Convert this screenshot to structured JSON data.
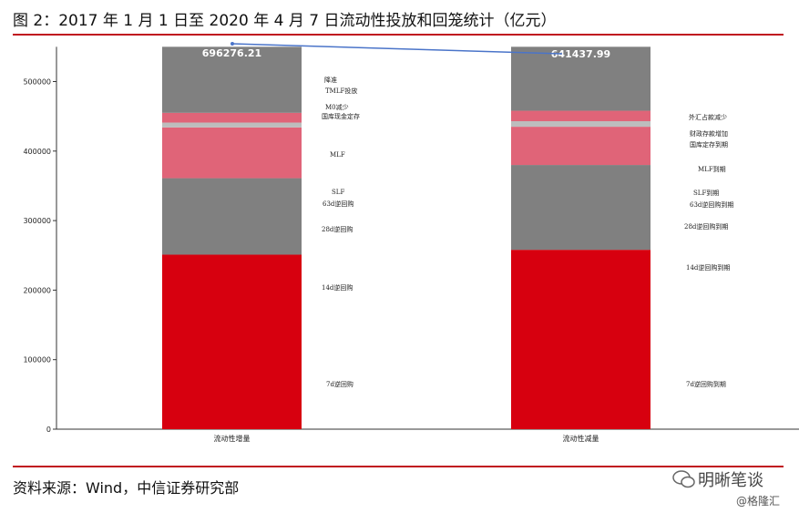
{
  "header": {
    "title": "图 2：2017 年 1 月 1 日至 2020 年 4 月 7 日流动性投放和回笼统计（亿元）"
  },
  "footer": {
    "source": "资料来源：Wind，中信证券研究部",
    "watermark_brand": "明晰笔谈",
    "watermark_sub": "@格隆汇"
  },
  "colors": {
    "accent_rule": "#c0141f",
    "red": "#d7000f",
    "pink": "#e06478",
    "gray": "#808080",
    "light_gray": "#bdbdbd",
    "link_line": "#4a74c9"
  },
  "chart_data": {
    "type": "bar",
    "stacked": true,
    "ylim": [
      0,
      550000
    ],
    "yticks": [
      0,
      100000,
      200000,
      300000,
      400000,
      500000
    ],
    "categories": [
      "流动性增量",
      "流动性减量"
    ],
    "totals": [
      "696276.21",
      "641437.99"
    ],
    "stacks": [
      {
        "category": "流动性增量",
        "segments": [
          {
            "label": "7d逆回购",
            "value": 251000,
            "color": "red"
          },
          {
            "label": "28d逆回购",
            "value": 110000,
            "color": "gray"
          },
          {
            "label": "MLF",
            "value": 73000,
            "color": "pink"
          },
          {
            "label": "国库现金定存",
            "value": 7000,
            "color": "light_gray"
          },
          {
            "label": "M0减少",
            "value": 14000,
            "color": "pink"
          },
          {
            "label": "降准",
            "value": 95000,
            "color": "gray"
          }
        ],
        "annotations": [
          "降准",
          "TMLF投放",
          "M0减少",
          "国库现金定存",
          "MLF",
          "SLF",
          "63d逆回购",
          "28d逆回购",
          "14d逆回购",
          "7d逆回购"
        ]
      },
      {
        "category": "流动性减量",
        "segments": [
          {
            "label": "7d逆回购到期",
            "value": 258000,
            "color": "red"
          },
          {
            "label": "28d逆回购到期",
            "value": 122000,
            "color": "gray"
          },
          {
            "label": "MLF到期",
            "value": 55000,
            "color": "pink"
          },
          {
            "label": "国库定存到期",
            "value": 8000,
            "color": "light_gray"
          },
          {
            "label": "财政存款增加",
            "value": 15000,
            "color": "pink"
          },
          {
            "label": "外汇占款减少",
            "value": 92000,
            "color": "gray"
          }
        ],
        "annotations": [
          "外汇占款减少",
          "财政存款增加",
          "国库定存到期",
          "MLF到期",
          "SLF到期",
          "63d逆回购到期",
          "28d逆回购到期",
          "14d逆回购到期",
          "7d逆回购到期"
        ]
      }
    ]
  }
}
